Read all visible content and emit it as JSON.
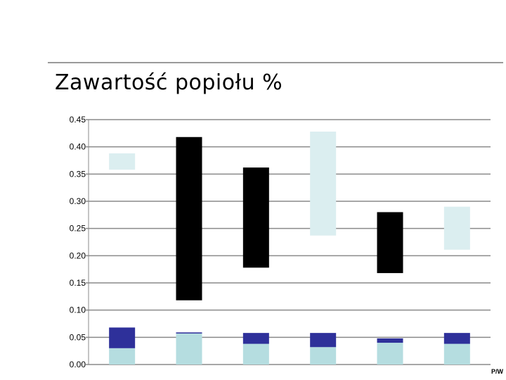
{
  "title": "Zawartość popiołu %",
  "corner_mark": "P/W",
  "chart_data": {
    "type": "bar",
    "stacked": "floating",
    "title": "Zawartość popiołu %",
    "xlabel": "",
    "ylabel": "",
    "ylim": [
      0,
      0.45
    ],
    "y_ticks": [
      "0.00",
      "0.05",
      "0.10",
      "0.15",
      "0.20",
      "0.25",
      "0.30",
      "0.35",
      "0.40",
      "0.45"
    ],
    "grid": true,
    "legend": "none",
    "categories": [
      "",
      "",
      "",
      "",
      "",
      ""
    ],
    "segments": [
      {
        "color": "#b5dde0",
        "from": [
          0,
          0,
          0,
          0,
          0,
          0
        ],
        "to": [
          0.03,
          0.057,
          0.038,
          0.032,
          0.04,
          0.038
        ]
      },
      {
        "color": "#2e309a",
        "from": [
          0.03,
          0.057,
          0.038,
          0.032,
          0.04,
          0.038
        ],
        "to": [
          0.068,
          0.059,
          0.058,
          0.058,
          0.048,
          0.058
        ]
      },
      {
        "color": "#000000",
        "from": [
          null,
          0.118,
          0.178,
          null,
          0.168,
          null
        ],
        "to": [
          null,
          0.418,
          0.362,
          null,
          0.28,
          null
        ]
      },
      {
        "color": "#dbeef0",
        "from": [
          0.358,
          null,
          null,
          0.237,
          null,
          0.211
        ],
        "to": [
          0.388,
          null,
          null,
          0.428,
          null,
          0.29
        ]
      }
    ]
  }
}
